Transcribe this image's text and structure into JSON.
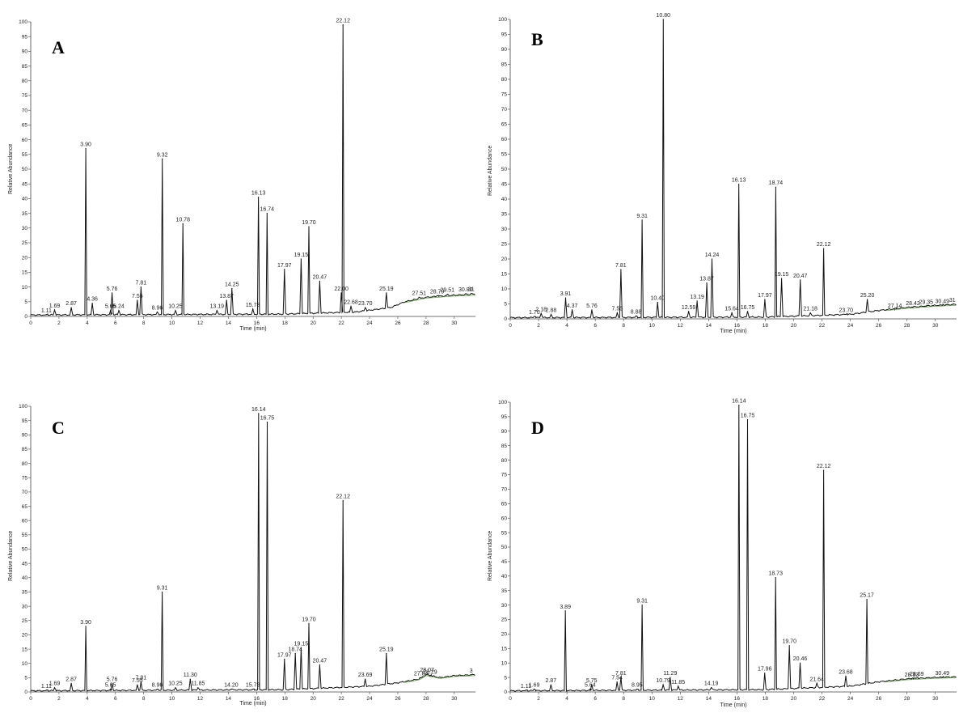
{
  "chart_data": [
    {
      "type": "line",
      "panel_label": "A",
      "xlabel": "Time (min)",
      "ylabel": "Relative Abundance",
      "xlim": [
        0,
        31.5
      ],
      "ylim": [
        0,
        100
      ],
      "x_ticks": [
        0,
        2,
        4,
        6,
        8,
        10,
        12,
        14,
        16,
        18,
        20,
        22,
        24,
        26,
        28,
        30
      ],
      "y_ticks": [
        0,
        5,
        10,
        15,
        20,
        25,
        30,
        35,
        40,
        45,
        50,
        55,
        60,
        65,
        70,
        75,
        80,
        85,
        90,
        95,
        100
      ],
      "baseline": [
        [
          0,
          0.5
        ],
        [
          18,
          0.8
        ],
        [
          23,
          1.5
        ],
        [
          25.5,
          3
        ],
        [
          26.5,
          5
        ],
        [
          28,
          6.5
        ],
        [
          30,
          7.2
        ],
        [
          31.5,
          7.5
        ]
      ],
      "peaks": [
        {
          "rt": "1.11",
          "x": 1.11,
          "y": 0.6
        },
        {
          "rt": "1.69",
          "x": 1.69,
          "y": 2.2
        },
        {
          "rt": "2.87",
          "x": 2.87,
          "y": 3.0
        },
        {
          "rt": "3.90",
          "x": 3.9,
          "y": 57.0
        },
        {
          "rt": "4.36",
          "x": 4.36,
          "y": 4.5
        },
        {
          "rt": "5.65",
          "x": 5.65,
          "y": 2.0
        },
        {
          "rt": "5.76",
          "x": 5.76,
          "y": 8.0
        },
        {
          "rt": "6.24",
          "x": 6.24,
          "y": 2.0
        },
        {
          "rt": "7.55",
          "x": 7.55,
          "y": 5.5
        },
        {
          "rt": "7.81",
          "x": 7.81,
          "y": 10.0
        },
        {
          "rt": "8.96",
          "x": 8.96,
          "y": 1.5
        },
        {
          "rt": "9.32",
          "x": 9.32,
          "y": 53.5
        },
        {
          "rt": "10.25",
          "x": 10.25,
          "y": 2.0
        },
        {
          "rt": "10.78",
          "x": 10.78,
          "y": 31.5
        },
        {
          "rt": "13.19",
          "x": 13.19,
          "y": 2.0
        },
        {
          "rt": "13.87",
          "x": 13.87,
          "y": 5.5
        },
        {
          "rt": "14.25",
          "x": 14.25,
          "y": 9.5
        },
        {
          "rt": "15.73",
          "x": 15.73,
          "y": 2.5
        },
        {
          "rt": "16.13",
          "x": 16.13,
          "y": 40.5
        },
        {
          "rt": "16.74",
          "x": 16.74,
          "y": 35.0
        },
        {
          "rt": "17.97",
          "x": 17.97,
          "y": 16.0
        },
        {
          "rt": "19.15",
          "x": 19.15,
          "y": 19.5
        },
        {
          "rt": "19.70",
          "x": 19.7,
          "y": 30.5
        },
        {
          "rt": "20.47",
          "x": 20.47,
          "y": 12.0
        },
        {
          "rt": "22.00",
          "x": 22.0,
          "y": 8.0
        },
        {
          "rt": "22.12",
          "x": 22.12,
          "y": 99.0
        },
        {
          "rt": "22.68",
          "x": 22.68,
          "y": 3.5
        },
        {
          "rt": "23.70",
          "x": 23.7,
          "y": 3.0
        },
        {
          "rt": "25.19",
          "x": 25.19,
          "y": 8.0
        },
        {
          "rt": "27.51",
          "x": 27.51,
          "y": 6.5
        },
        {
          "rt": "28.79",
          "x": 28.79,
          "y": 7.0
        },
        {
          "rt": "29.51",
          "x": 29.51,
          "y": 7.5
        },
        {
          "rt": "30.80",
          "x": 30.8,
          "y": 7.7
        },
        {
          "rt": "31",
          "x": 31.2,
          "y": 7.8
        }
      ]
    },
    {
      "type": "line",
      "panel_label": "B",
      "xlabel": "Time (min)",
      "ylabel": "Relative Abundance",
      "xlim": [
        0,
        31.5
      ],
      "ylim": [
        0,
        100
      ],
      "x_ticks": [
        0,
        2,
        4,
        6,
        8,
        10,
        12,
        14,
        16,
        18,
        20,
        22,
        24,
        26,
        28,
        30
      ],
      "y_ticks": [
        0,
        5,
        10,
        15,
        20,
        25,
        30,
        35,
        40,
        45,
        50,
        55,
        60,
        65,
        70,
        75,
        80,
        85,
        90,
        95,
        100
      ],
      "baseline": [
        [
          0,
          0.4
        ],
        [
          18,
          0.6
        ],
        [
          24,
          1.5
        ],
        [
          26,
          2.8
        ],
        [
          28,
          3.8
        ],
        [
          30,
          4.5
        ],
        [
          31.5,
          4.8
        ]
      ],
      "peaks": [
        {
          "rt": "1.70",
          "x": 1.7,
          "y": 0.8
        },
        {
          "rt": "2.18",
          "x": 2.18,
          "y": 1.8
        },
        {
          "rt": "2.88",
          "x": 2.88,
          "y": 1.5
        },
        {
          "rt": "3.91",
          "x": 3.91,
          "y": 7.0
        },
        {
          "rt": "4.37",
          "x": 4.37,
          "y": 3.0
        },
        {
          "rt": "5.76",
          "x": 5.76,
          "y": 3.0
        },
        {
          "rt": "7.55",
          "x": 7.55,
          "y": 2.0
        },
        {
          "rt": "7.81",
          "x": 7.81,
          "y": 16.5
        },
        {
          "rt": "8.88",
          "x": 8.88,
          "y": 1.0
        },
        {
          "rt": "9.31",
          "x": 9.31,
          "y": 33.0
        },
        {
          "rt": "10.40",
          "x": 10.4,
          "y": 5.5
        },
        {
          "rt": "10.80",
          "x": 10.8,
          "y": 100.0
        },
        {
          "rt": "12.59",
          "x": 12.59,
          "y": 2.5
        },
        {
          "rt": "13.19",
          "x": 13.19,
          "y": 6.0
        },
        {
          "rt": "13.87",
          "x": 13.87,
          "y": 12.0
        },
        {
          "rt": "14.24",
          "x": 14.24,
          "y": 20.0
        },
        {
          "rt": "15.64",
          "x": 15.64,
          "y": 2.0
        },
        {
          "rt": "16.13",
          "x": 16.13,
          "y": 45.0
        },
        {
          "rt": "16.75",
          "x": 16.75,
          "y": 2.5
        },
        {
          "rt": "17.97",
          "x": 17.97,
          "y": 6.5
        },
        {
          "rt": "18.74",
          "x": 18.74,
          "y": 44.0
        },
        {
          "rt": "19.15",
          "x": 19.15,
          "y": 13.5
        },
        {
          "rt": "20.47",
          "x": 20.47,
          "y": 13.0
        },
        {
          "rt": "21.18",
          "x": 21.18,
          "y": 2.0
        },
        {
          "rt": "22.12",
          "x": 22.12,
          "y": 23.5
        },
        {
          "rt": "23.70",
          "x": 23.7,
          "y": 1.5
        },
        {
          "rt": "25.20",
          "x": 25.2,
          "y": 6.5
        },
        {
          "rt": "27.14",
          "x": 27.14,
          "y": 3.0
        },
        {
          "rt": "28.42",
          "x": 28.42,
          "y": 3.8
        },
        {
          "rt": "29.35",
          "x": 29.35,
          "y": 4.2
        },
        {
          "rt": "30.49",
          "x": 30.49,
          "y": 4.5
        },
        {
          "rt": "31",
          "x": 31.2,
          "y": 4.8
        }
      ]
    },
    {
      "type": "line",
      "panel_label": "C",
      "xlabel": "Time (min)",
      "ylabel": "Relative Abundance",
      "xlim": [
        0,
        31.5
      ],
      "ylim": [
        0,
        100
      ],
      "x_ticks": [
        0,
        2,
        4,
        6,
        8,
        10,
        12,
        14,
        16,
        18,
        20,
        22,
        24,
        26,
        28,
        30
      ],
      "y_ticks": [
        0,
        5,
        10,
        15,
        20,
        25,
        30,
        35,
        40,
        45,
        50,
        55,
        60,
        65,
        70,
        75,
        80,
        85,
        90,
        95,
        100
      ],
      "baseline": [
        [
          0,
          0.4
        ],
        [
          18,
          0.8
        ],
        [
          24,
          2.0
        ],
        [
          26,
          3.2
        ],
        [
          27.5,
          4.5
        ],
        [
          28,
          6.0
        ],
        [
          29,
          5.0
        ],
        [
          30,
          5.7
        ],
        [
          31.5,
          6.0
        ]
      ],
      "peaks": [
        {
          "rt": "1.11",
          "x": 1.11,
          "y": 0.6
        },
        {
          "rt": "1.69",
          "x": 1.69,
          "y": 1.5
        },
        {
          "rt": "2.87",
          "x": 2.87,
          "y": 3.0
        },
        {
          "rt": "3.90",
          "x": 3.9,
          "y": 23.0
        },
        {
          "rt": "5.65",
          "x": 5.65,
          "y": 1.0
        },
        {
          "rt": "5.76",
          "x": 5.76,
          "y": 3.0
        },
        {
          "rt": "7.55",
          "x": 7.55,
          "y": 2.5
        },
        {
          "rt": "7.81",
          "x": 7.81,
          "y": 3.5
        },
        {
          "rt": "8.96",
          "x": 8.96,
          "y": 1.0
        },
        {
          "rt": "9.31",
          "x": 9.31,
          "y": 35.0
        },
        {
          "rt": "10.25",
          "x": 10.25,
          "y": 1.5
        },
        {
          "rt": "11.30",
          "x": 11.3,
          "y": 4.5
        },
        {
          "rt": "11.85",
          "x": 11.85,
          "y": 1.5
        },
        {
          "rt": "14.20",
          "x": 14.2,
          "y": 1.0
        },
        {
          "rt": "15.73",
          "x": 15.73,
          "y": 1.0
        },
        {
          "rt": "16.14",
          "x": 16.14,
          "y": 97.5
        },
        {
          "rt": "16.75",
          "x": 16.75,
          "y": 94.5
        },
        {
          "rt": "17.97",
          "x": 17.97,
          "y": 11.5
        },
        {
          "rt": "18.74",
          "x": 18.74,
          "y": 13.5
        },
        {
          "rt": "19.15",
          "x": 19.15,
          "y": 15.5
        },
        {
          "rt": "19.70",
          "x": 19.7,
          "y": 24.0
        },
        {
          "rt": "20.47",
          "x": 20.47,
          "y": 9.5
        },
        {
          "rt": "22.12",
          "x": 22.12,
          "y": 67.0
        },
        {
          "rt": "23.69",
          "x": 23.69,
          "y": 4.5
        },
        {
          "rt": "25.19",
          "x": 25.19,
          "y": 13.5
        },
        {
          "rt": "27.64",
          "x": 27.64,
          "y": 5.0
        },
        {
          "rt": "28.07",
          "x": 28.07,
          "y": 6.2
        },
        {
          "rt": "28.29",
          "x": 28.29,
          "y": 5.5
        },
        {
          "rt": "3",
          "x": 31.2,
          "y": 6.0
        }
      ]
    },
    {
      "type": "line",
      "panel_label": "D",
      "xlabel": "Time (min)",
      "ylabel": "Relative Abundance",
      "xlim": [
        0,
        31.5
      ],
      "ylim": [
        0,
        100
      ],
      "x_ticks": [
        0,
        2,
        4,
        6,
        8,
        10,
        12,
        14,
        16,
        18,
        20,
        22,
        24,
        26,
        28,
        30
      ],
      "y_ticks": [
        0,
        5,
        10,
        15,
        20,
        25,
        30,
        35,
        40,
        45,
        50,
        55,
        60,
        65,
        70,
        75,
        80,
        85,
        90,
        95,
        100
      ],
      "baseline": [
        [
          0,
          0.4
        ],
        [
          18,
          0.8
        ],
        [
          24,
          2.0
        ],
        [
          26,
          3.5
        ],
        [
          28,
          4.5
        ],
        [
          30,
          5.0
        ],
        [
          31.5,
          5.2
        ]
      ],
      "peaks": [
        {
          "rt": "1.11",
          "x": 1.11,
          "y": 0.6
        },
        {
          "rt": "1.69",
          "x": 1.69,
          "y": 1.0
        },
        {
          "rt": "2.87",
          "x": 2.87,
          "y": 2.5
        },
        {
          "rt": "3.89",
          "x": 3.89,
          "y": 28.0
        },
        {
          "rt": "5.64",
          "x": 5.64,
          "y": 1.0
        },
        {
          "rt": "5.75",
          "x": 5.75,
          "y": 2.5
        },
        {
          "rt": "7.54",
          "x": 7.54,
          "y": 3.5
        },
        {
          "rt": "7.81",
          "x": 7.81,
          "y": 5.0
        },
        {
          "rt": "8.95",
          "x": 8.95,
          "y": 1.0
        },
        {
          "rt": "9.31",
          "x": 9.31,
          "y": 30.0
        },
        {
          "rt": "10.79",
          "x": 10.79,
          "y": 2.5
        },
        {
          "rt": "11.29",
          "x": 11.29,
          "y": 5.0
        },
        {
          "rt": "11.85",
          "x": 11.85,
          "y": 2.0
        },
        {
          "rt": "14.19",
          "x": 14.19,
          "y": 1.5
        },
        {
          "rt": "16.14",
          "x": 16.14,
          "y": 99.0
        },
        {
          "rt": "16.75",
          "x": 16.75,
          "y": 94.0
        },
        {
          "rt": "17.96",
          "x": 17.96,
          "y": 6.5
        },
        {
          "rt": "18.73",
          "x": 18.73,
          "y": 39.5
        },
        {
          "rt": "19.70",
          "x": 19.7,
          "y": 16.0
        },
        {
          "rt": "20.46",
          "x": 20.46,
          "y": 10.0
        },
        {
          "rt": "21.64",
          "x": 21.64,
          "y": 3.0
        },
        {
          "rt": "22.12",
          "x": 22.12,
          "y": 76.5
        },
        {
          "rt": "23.68",
          "x": 23.68,
          "y": 5.5
        },
        {
          "rt": "25.17",
          "x": 25.17,
          "y": 32.0
        },
        {
          "rt": "28.33",
          "x": 28.33,
          "y": 4.5
        },
        {
          "rt": "28.69",
          "x": 28.69,
          "y": 4.8
        },
        {
          "rt": "30.49",
          "x": 30.49,
          "y": 5.0
        }
      ]
    }
  ]
}
